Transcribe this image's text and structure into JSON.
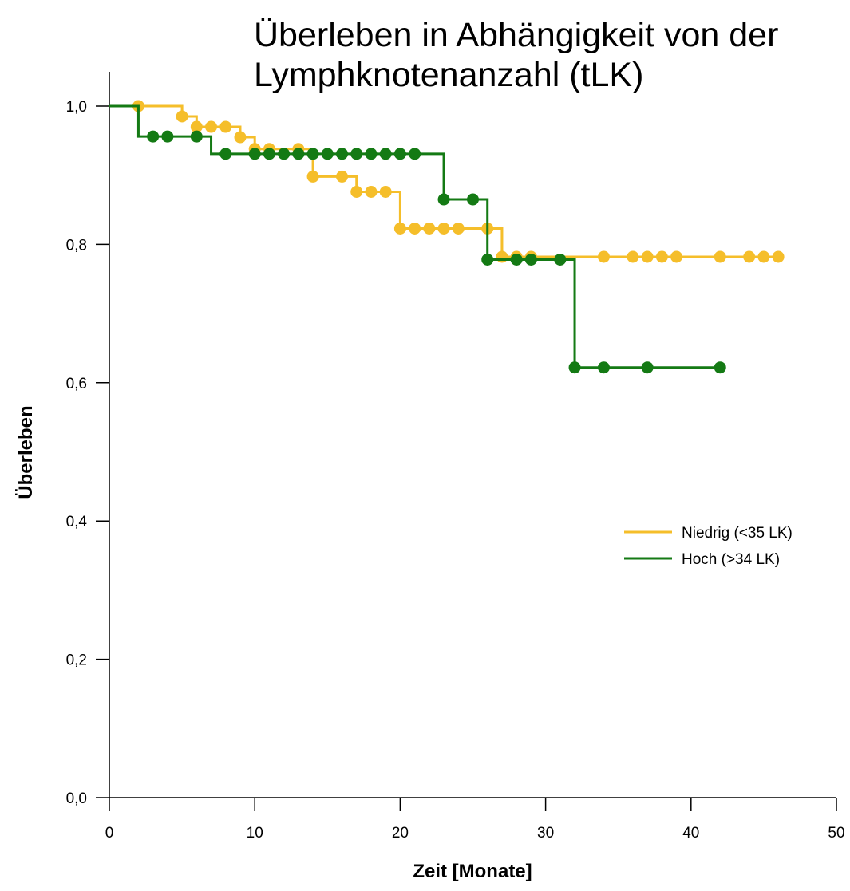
{
  "chart_data": {
    "type": "line",
    "subtype": "kaplan-meier step",
    "title_lines": [
      "Überleben in Abhängigkeit von der",
      "Lymphknotenanzahl (tLK)"
    ],
    "xlabel": "Zeit [Monate]",
    "ylabel": "Überleben",
    "xlim": [
      0,
      50
    ],
    "ylim": [
      0,
      1.0
    ],
    "x_ticks": [
      0,
      10,
      20,
      30,
      40,
      50
    ],
    "x_tick_labels": [
      "0",
      "10",
      "20",
      "30",
      "40",
      "50"
    ],
    "y_ticks": [
      0,
      0.2,
      0.4,
      0.6,
      0.8,
      1.0
    ],
    "y_tick_labels": [
      "0,0",
      "0,2",
      "0,4",
      "0,6",
      "0,8",
      "1,0"
    ],
    "grid": false,
    "legend_position": "center-right",
    "series": [
      {
        "name": "Niedrig (<35 LK)",
        "color": "#f5be2a",
        "steps": [
          [
            0,
            1.0
          ],
          [
            5,
            0.985
          ],
          [
            6,
            0.97
          ],
          [
            9,
            0.955
          ],
          [
            10,
            0.938
          ],
          [
            14,
            0.898
          ],
          [
            17,
            0.876
          ],
          [
            20,
            0.823
          ],
          [
            27,
            0.782
          ],
          [
            46,
            0.782
          ]
        ],
        "censored": [
          [
            2,
            1.0
          ],
          [
            5,
            0.985
          ],
          [
            6,
            0.97
          ],
          [
            7,
            0.97
          ],
          [
            8,
            0.97
          ],
          [
            9,
            0.955
          ],
          [
            10,
            0.938
          ],
          [
            11,
            0.938
          ],
          [
            13,
            0.938
          ],
          [
            14,
            0.898
          ],
          [
            16,
            0.898
          ],
          [
            17,
            0.876
          ],
          [
            18,
            0.876
          ],
          [
            19,
            0.876
          ],
          [
            20,
            0.823
          ],
          [
            21,
            0.823
          ],
          [
            22,
            0.823
          ],
          [
            23,
            0.823
          ],
          [
            24,
            0.823
          ],
          [
            26,
            0.823
          ],
          [
            27,
            0.782
          ],
          [
            28,
            0.782
          ],
          [
            29,
            0.782
          ],
          [
            34,
            0.782
          ],
          [
            36,
            0.782
          ],
          [
            37,
            0.782
          ],
          [
            38,
            0.782
          ],
          [
            39,
            0.782
          ],
          [
            42,
            0.782
          ],
          [
            44,
            0.782
          ],
          [
            45,
            0.782
          ],
          [
            46,
            0.782
          ]
        ]
      },
      {
        "name": "Hoch (>34 LK)",
        "color": "#147a14",
        "steps": [
          [
            0,
            1.0
          ],
          [
            2,
            0.956
          ],
          [
            7,
            0.931
          ],
          [
            23,
            0.865
          ],
          [
            26,
            0.778
          ],
          [
            32,
            0.622
          ],
          [
            42,
            0.622
          ]
        ],
        "censored": [
          [
            3,
            0.956
          ],
          [
            4,
            0.956
          ],
          [
            6,
            0.956
          ],
          [
            8,
            0.931
          ],
          [
            10,
            0.931
          ],
          [
            11,
            0.931
          ],
          [
            12,
            0.931
          ],
          [
            13,
            0.931
          ],
          [
            14,
            0.931
          ],
          [
            15,
            0.931
          ],
          [
            16,
            0.931
          ],
          [
            17,
            0.931
          ],
          [
            18,
            0.931
          ],
          [
            19,
            0.931
          ],
          [
            20,
            0.931
          ],
          [
            21,
            0.931
          ],
          [
            23,
            0.865
          ],
          [
            25,
            0.865
          ],
          [
            26,
            0.778
          ],
          [
            28,
            0.778
          ],
          [
            29,
            0.778
          ],
          [
            31,
            0.778
          ],
          [
            32,
            0.622
          ],
          [
            34,
            0.622
          ],
          [
            37,
            0.622
          ],
          [
            42,
            0.622
          ]
        ]
      }
    ]
  }
}
